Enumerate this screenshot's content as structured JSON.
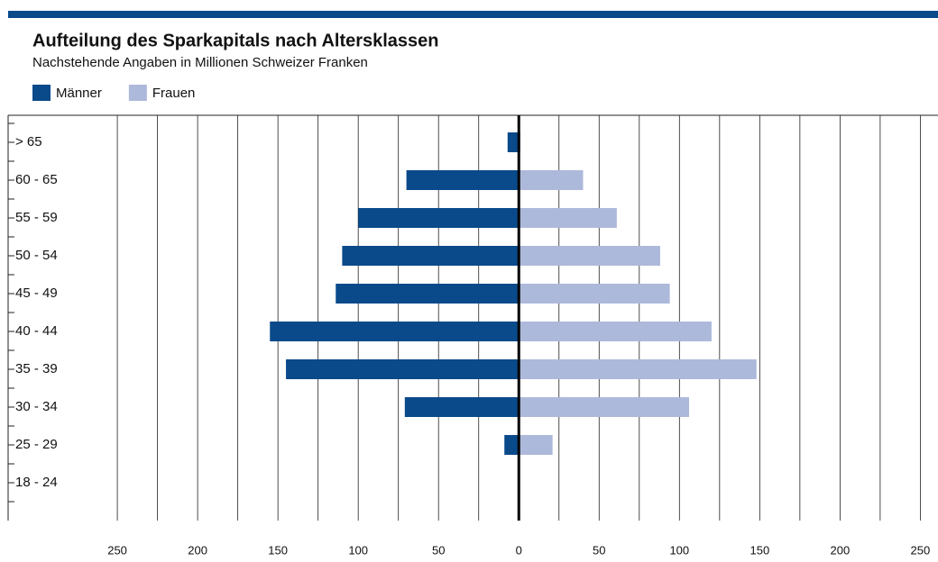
{
  "chart_data": {
    "type": "bar",
    "orientation": "horizontal",
    "layout": "diverging",
    "title": "Aufteilung des Sparkapitals nach Altersklassen",
    "subtitle": "Nachstehende Angaben in Millionen Schweizer Franken",
    "categories": [
      "> 65",
      "60 - 65",
      "55 - 59",
      "50 - 54",
      "45 - 49",
      "40 - 44",
      "35 - 39",
      "30 - 34",
      "25 - 29",
      "18 - 24"
    ],
    "series": [
      {
        "name": "Männer",
        "color": "#0a4a8a",
        "values": [
          -7,
          -70,
          -100,
          -110,
          -114,
          -155,
          -145,
          -71,
          -9,
          0
        ]
      },
      {
        "name": "Frauen",
        "color": "#adb9da",
        "values": [
          1,
          40,
          61,
          88,
          94,
          120,
          148,
          106,
          21,
          0
        ]
      }
    ],
    "xlim": [
      -318,
      261
    ],
    "xticks": [
      {
        "value": -250,
        "label": "250"
      },
      {
        "value": -200,
        "label": "200"
      },
      {
        "value": -150,
        "label": "150"
      },
      {
        "value": -100,
        "label": "100"
      },
      {
        "value": -50,
        "label": "50"
      },
      0,
      50,
      100,
      150,
      200,
      250
    ],
    "minor_xticks": [
      -225,
      -175,
      -125,
      -75,
      -25,
      25,
      75,
      125,
      175,
      225
    ],
    "grid": true,
    "legend": "top-left"
  }
}
